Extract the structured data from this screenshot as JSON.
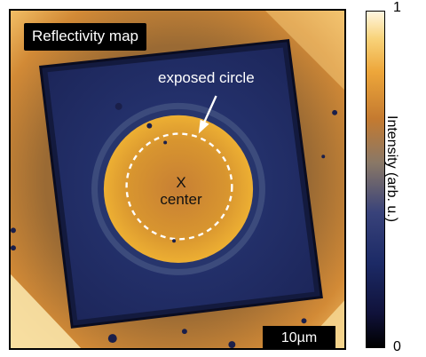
{
  "map": {
    "title": "Reflectivity map",
    "annotation": "exposed circle",
    "marker_symbol": "X",
    "marker_label": "center",
    "scale_bar": "10µm"
  },
  "colorbar": {
    "max_label": "1",
    "min_label": "0",
    "axis_label": "Intensity (arb. u.)"
  }
}
